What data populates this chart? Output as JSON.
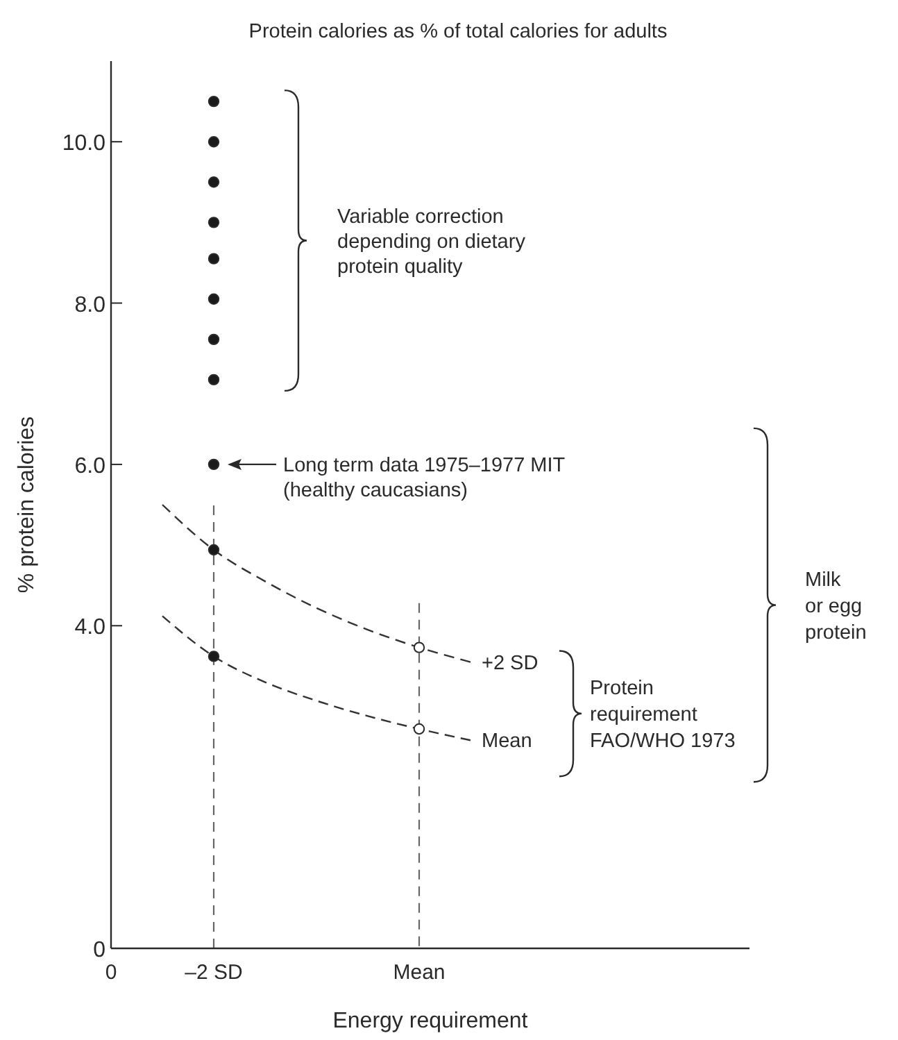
{
  "chart_data": {
    "type": "scatter",
    "title": "Protein calories as % of total calories for adults",
    "xlabel": "Energy requirement",
    "ylabel": "% protein calories",
    "categories": [
      "0",
      null,
      "–2 SD",
      null,
      null,
      null,
      "Mean",
      null,
      null,
      null,
      null,
      null,
      null
    ],
    "ylim": [
      0,
      11
    ],
    "yticks": [
      0,
      {
        "value": 4,
        "label": "4.0"
      },
      {
        "value": 6,
        "label": "6.0"
      },
      {
        "value": 8,
        "label": "8.0"
      },
      {
        "value": 10,
        "label": "10.0"
      }
    ],
    "grid": false,
    "legend": false,
    "ref_lines": [
      {
        "axis": "x",
        "value": "–2 SD",
        "color": "#666666",
        "line_style": "dashed"
      },
      {
        "axis": "x",
        "value": "Mean",
        "color": "#666666",
        "line_style": "dashed"
      }
    ],
    "series": [
      {
        "type": "line",
        "name": "+2 SD",
        "color": "#333333",
        "line_style": "dashed",
        "marker": "none",
        "values": [
          null,
          5.5,
          4.94,
          4.55,
          4.22,
          3.95,
          3.73,
          3.55,
          null,
          null,
          null,
          null,
          null
        ]
      },
      {
        "type": "line",
        "name": "Mean",
        "color": "#333333",
        "line_style": "dashed",
        "marker": "none",
        "values": [
          null,
          4.12,
          3.62,
          3.3,
          3.07,
          2.88,
          2.72,
          2.58,
          null,
          null,
          null,
          null,
          null
        ]
      },
      {
        "color": "#1a1a1a",
        "marker": "circle",
        "x": [
          "–2 SD",
          "–2 SD",
          "–2 SD",
          "–2 SD",
          "–2 SD",
          "–2 SD",
          "–2 SD",
          "–2 SD",
          "–2 SD",
          "–2 SD",
          "–2 SD"
        ],
        "values": [
          10.5,
          10.0,
          9.5,
          9.0,
          8.55,
          8.05,
          7.55,
          7.05,
          6.0,
          4.94,
          3.62
        ]
      },
      {
        "color": "#ffffff",
        "marker": "circle",
        "x": [
          "Mean",
          "Mean"
        ],
        "values": [
          3.73,
          2.72
        ]
      }
    ],
    "annotations": [
      "Variable correction\ndepending on dietary\nprotein quality",
      "Long term data 1975–1977 MIT\n(healthy caucasians)",
      "Protein\nrequirement\nFAO/WHO 1973",
      "Milk\nor egg\nprotein"
    ]
  }
}
